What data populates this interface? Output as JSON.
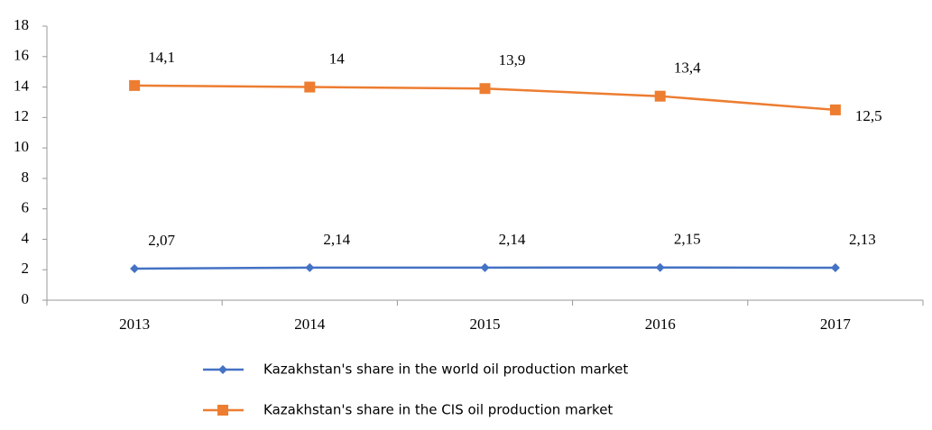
{
  "chart_data": {
    "type": "line",
    "categories": [
      "2013",
      "2014",
      "2015",
      "2016",
      "2017"
    ],
    "series": [
      {
        "name": "Kazakhstan's share in the world oil production market",
        "color": "#4472c4",
        "marker": "diamond",
        "values": [
          2.07,
          2.14,
          2.14,
          2.15,
          2.13
        ],
        "value_labels": [
          "2,07",
          "2,14",
          "2,14",
          "2,15",
          "2,13"
        ]
      },
      {
        "name": "Kazakhstan's share in the CIS oil production market",
        "color": "#ed7d31",
        "marker": "square",
        "values": [
          14.1,
          14,
          13.9,
          13.4,
          12.5
        ],
        "value_labels": [
          "14,1",
          "14",
          "13,9",
          "13,4",
          "12,5"
        ]
      }
    ],
    "ylim": [
      0,
      18
    ],
    "yticks": [
      0,
      2,
      4,
      6,
      8,
      10,
      12,
      14,
      16,
      18
    ],
    "legend": "bottom"
  }
}
